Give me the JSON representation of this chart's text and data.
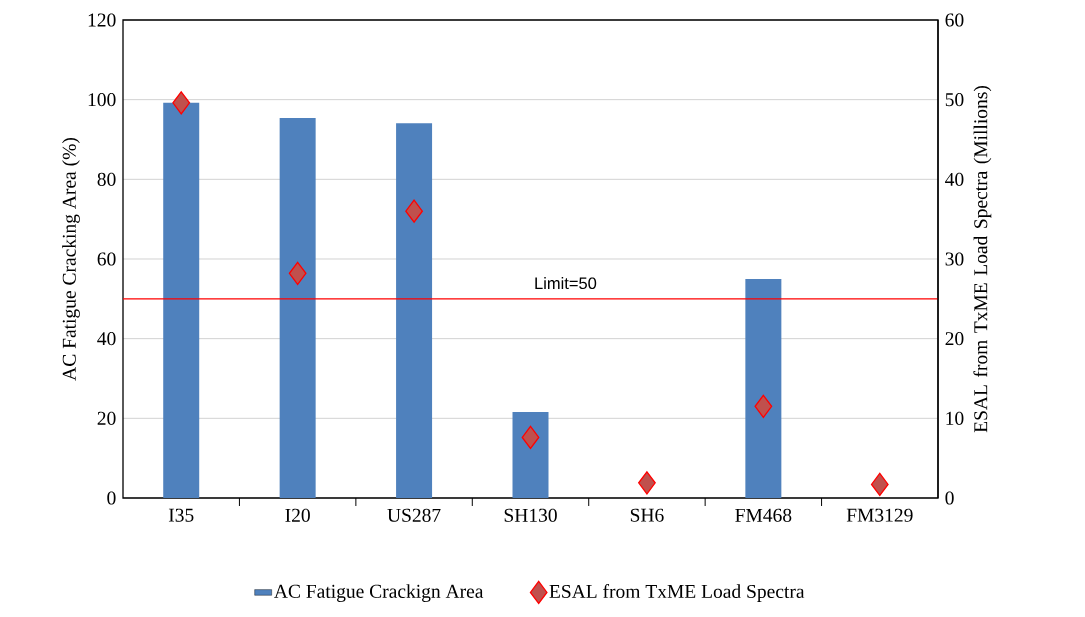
{
  "chart_data": {
    "type": "bar",
    "categories": [
      "I35",
      "I20",
      "US287",
      "SH130",
      "SH6",
      "FM468",
      "FM3129"
    ],
    "ylabel": "AC Fatigue Cracking Area (%)",
    "y2label": "ESAL from TxME Load Spectra (Millions)",
    "series": [
      {
        "name": "AC Fatigue Crackign Area",
        "color": "#4f81bd",
        "values": [
          99.2,
          95.4,
          94.1,
          21.6,
          0,
          55,
          0
        ]
      },
      {
        "name": "ESAL from TxME Load Spectra",
        "type": "scatter",
        "axis": "y2",
        "color": "#c0504d",
        "marker": "diamond",
        "values": [
          49.6,
          28.2,
          36.0,
          7.6,
          1.9,
          11.5,
          1.7
        ]
      }
    ],
    "ylim": [
      0,
      120
    ],
    "yticks": [
      0,
      20,
      40,
      60,
      80,
      100,
      120
    ],
    "y2lim": [
      0,
      60
    ],
    "y2ticks": [
      0,
      10,
      20,
      30,
      40,
      50,
      60
    ],
    "grid": "y",
    "legend": "bottom",
    "ref_lines": [
      {
        "axis": "y",
        "value": 50,
        "label": "Limit=50",
        "color": "#ff0000"
      }
    ]
  }
}
